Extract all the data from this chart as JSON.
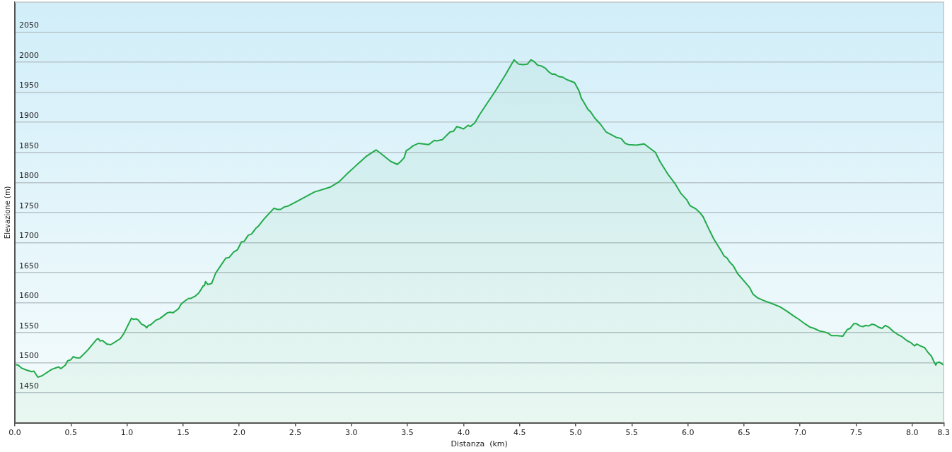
{
  "chart_data": {
    "type": "area",
    "xlabel": "Distanza  (km)",
    "ylabel": "Elevazione (m)",
    "x": [
      0,
      0.03,
      0.06,
      0.1,
      0.15,
      0.17,
      0.205,
      0.24,
      0.33,
      0.39,
      0.41,
      0.45,
      0.47,
      0.5,
      0.52,
      0.55,
      0.58,
      0.65,
      0.73,
      0.745,
      0.76,
      0.78,
      0.82,
      0.855,
      0.89,
      0.94,
      0.97,
      1.04,
      1.055,
      1.08,
      1.1,
      1.13,
      1.155,
      1.175,
      1.19,
      1.21,
      1.26,
      1.29,
      1.36,
      1.385,
      1.41,
      1.46,
      1.48,
      1.51,
      1.55,
      1.57,
      1.61,
      1.64,
      1.68,
      1.69,
      1.7,
      1.72,
      1.755,
      1.79,
      1.83,
      1.88,
      1.91,
      1.95,
      1.985,
      2.02,
      2.045,
      2.08,
      2.11,
      2.15,
      2.17,
      2.225,
      2.31,
      2.34,
      2.37,
      2.4,
      2.44,
      2.53,
      2.67,
      2.81,
      2.89,
      2.96,
      3.03,
      3.13,
      3.22,
      3.27,
      3.35,
      3.41,
      3.44,
      3.47,
      3.49,
      3.51,
      3.55,
      3.6,
      3.69,
      3.74,
      3.76,
      3.81,
      3.88,
      3.91,
      3.94,
      4.0,
      4.04,
      4.06,
      4.1,
      4.14,
      4.19,
      4.28,
      4.37,
      4.45,
      4.49,
      4.53,
      4.57,
      4.6,
      4.63,
      4.66,
      4.69,
      4.73,
      4.76,
      4.79,
      4.815,
      4.85,
      4.885,
      4.92,
      4.95,
      4.99,
      5.03,
      5.05,
      5.07,
      5.11,
      5.13,
      5.17,
      5.22,
      5.27,
      5.31,
      5.36,
      5.405,
      5.44,
      5.47,
      5.54,
      5.61,
      5.66,
      5.71,
      5.75,
      5.82,
      5.885,
      5.94,
      5.99,
      6.02,
      6.07,
      6.1,
      6.135,
      6.18,
      6.23,
      6.27,
      6.3,
      6.32,
      6.35,
      6.37,
      6.405,
      6.44,
      6.5,
      6.55,
      6.58,
      6.62,
      6.68,
      6.74,
      6.82,
      6.88,
      6.94,
      6.99,
      7.04,
      7.09,
      7.125,
      7.17,
      7.22,
      7.25,
      7.28,
      7.33,
      7.38,
      7.42,
      7.445,
      7.48,
      7.5,
      7.535,
      7.56,
      7.585,
      7.61,
      7.64,
      7.665,
      7.7,
      7.73,
      7.76,
      7.79,
      7.83,
      7.87,
      7.91,
      7.95,
      7.99,
      8.02,
      8.04,
      8.07,
      8.11,
      8.14,
      8.17,
      8.19,
      8.21,
      8.22,
      8.24,
      8.28
    ],
    "values": [
      1497,
      1496,
      1491,
      1488,
      1485,
      1486,
      1476,
      1478,
      1489,
      1493,
      1490,
      1496,
      1503,
      1505,
      1510,
      1508,
      1508,
      1521,
      1539,
      1540,
      1536,
      1537,
      1531,
      1530,
      1534,
      1540,
      1548,
      1574,
      1572,
      1573,
      1571,
      1564,
      1562,
      1558,
      1562,
      1563,
      1571,
      1573,
      1583,
      1584,
      1583,
      1590,
      1597,
      1602,
      1607,
      1607,
      1611,
      1616,
      1628,
      1628,
      1635,
      1630,
      1632,
      1649,
      1660,
      1674,
      1675,
      1684,
      1688,
      1701,
      1702,
      1712,
      1714,
      1724,
      1727,
      1740,
      1757,
      1755,
      1755,
      1759,
      1761,
      1770,
      1784,
      1792,
      1801,
      1814,
      1826,
      1843,
      1854,
      1847,
      1835,
      1830,
      1835,
      1841,
      1853,
      1855,
      1861,
      1865,
      1863,
      1870,
      1869,
      1871,
      1884,
      1885,
      1893,
      1889,
      1895,
      1893,
      1899,
      1912,
      1926,
      1951,
      1978,
      2004,
      1997,
      1996,
      1997,
      2004,
      2001,
      1995,
      1994,
      1990,
      1984,
      1980,
      1980,
      1976,
      1975,
      1971,
      1969,
      1966,
      1952,
      1940,
      1934,
      1921,
      1918,
      1907,
      1897,
      1884,
      1880,
      1875,
      1873,
      1865,
      1863,
      1862,
      1864,
      1857,
      1850,
      1835,
      1814,
      1798,
      1781,
      1771,
      1761,
      1756,
      1751,
      1743,
      1725,
      1706,
      1694,
      1685,
      1678,
      1674,
      1668,
      1661,
      1649,
      1636,
      1625,
      1614,
      1608,
      1603,
      1599,
      1593,
      1586,
      1578,
      1572,
      1565,
      1559,
      1557,
      1553,
      1551,
      1549,
      1545,
      1545,
      1544,
      1555,
      1557,
      1565,
      1565,
      1561,
      1560,
      1562,
      1561,
      1564,
      1563,
      1559,
      1557,
      1562,
      1559,
      1552,
      1547,
      1543,
      1537,
      1533,
      1528,
      1531,
      1528,
      1525,
      1517,
      1511,
      1503,
      1496,
      1500,
      1501,
      1496
    ],
    "color": "#22aa4a",
    "xlim": [
      0,
      8.28
    ],
    "xticks": [
      {
        "value": 0,
        "label": "0.0"
      },
      0.5,
      {
        "value": 1,
        "label": "1.0"
      },
      1.5,
      {
        "value": 2,
        "label": "2.0"
      },
      2.5,
      {
        "value": 3,
        "label": "3.0"
      },
      3.5,
      {
        "value": 4,
        "label": "4.0"
      },
      4.5,
      {
        "value": 5,
        "label": "5.0"
      },
      5.5,
      {
        "value": 6,
        "label": "6.0"
      },
      6.5,
      {
        "value": 7,
        "label": "7.0"
      },
      7.5,
      {
        "value": 8,
        "label": "8.0"
      },
      {
        "value": 8.28,
        "label": "8.3"
      }
    ],
    "ylim": [
      1400,
      2100
    ],
    "yticks": [
      1450,
      1500,
      1550,
      1600,
      1650,
      1700,
      1750,
      1800,
      1850,
      1900,
      1950,
      2000,
      2050
    ],
    "grid": "y",
    "marker": "none",
    "line_style": "solid"
  }
}
